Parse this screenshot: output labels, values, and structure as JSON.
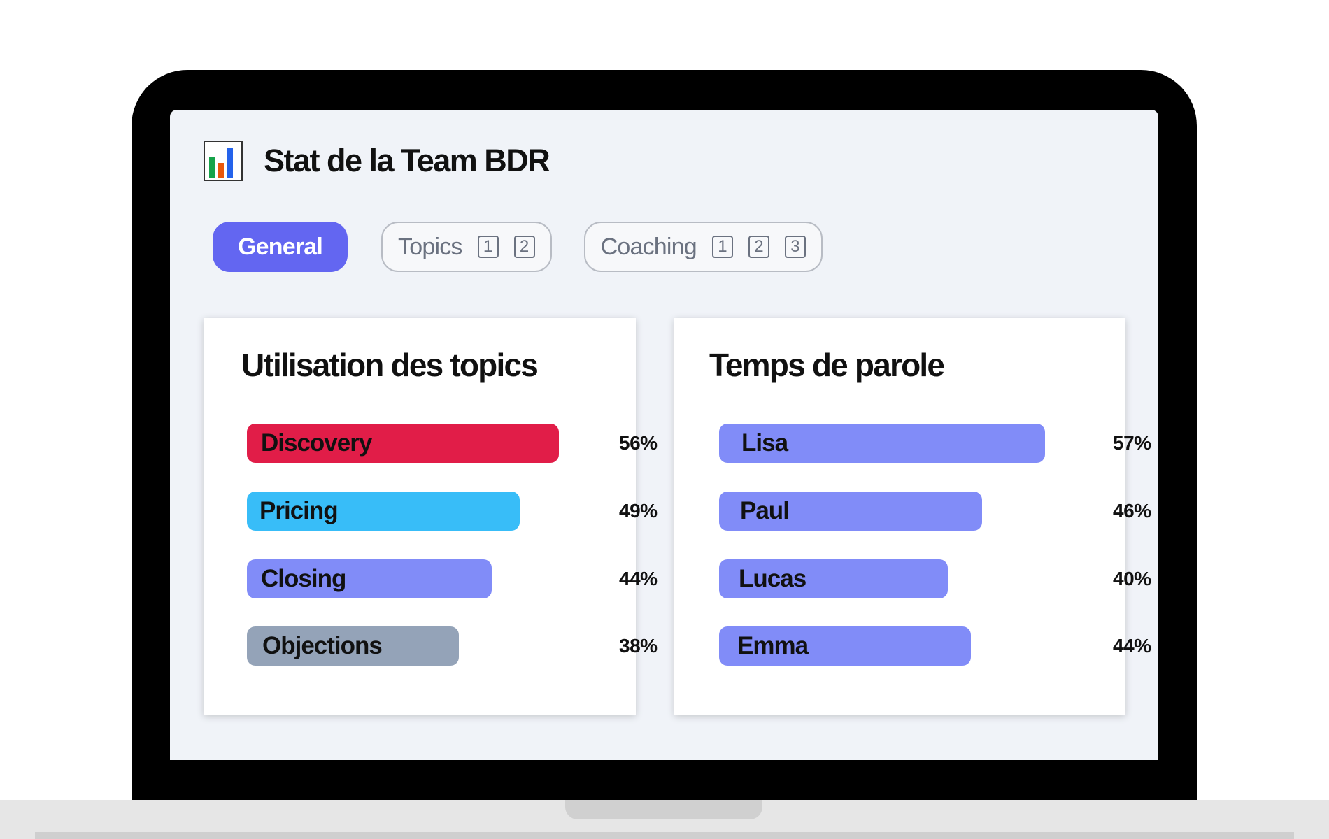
{
  "header": {
    "title": "Stat de la Team BDR",
    "icon": "bar-chart-icon"
  },
  "tabs": [
    {
      "label": "General",
      "active": true,
      "pages": []
    },
    {
      "label": "Topics",
      "active": false,
      "pages": [
        "1",
        "2"
      ]
    },
    {
      "label": "Coaching",
      "active": false,
      "pages": [
        "1",
        "2",
        "3"
      ]
    }
  ],
  "colors": {
    "accent": "#6366f1",
    "discovery": "#e11d48",
    "pricing": "#38bdf8",
    "closing": "#818cf8",
    "objections": "#94a3b8",
    "speaker": "#818cf8"
  },
  "chart_data": [
    {
      "type": "bar",
      "title": "Utilisation des topics",
      "categories": [
        "Discovery",
        "Pricing",
        "Closing",
        "Objections"
      ],
      "values": [
        56,
        49,
        44,
        38
      ],
      "labels": [
        "56%",
        "49%",
        "44%",
        "38%"
      ],
      "colors": [
        "#e11d48",
        "#38bdf8",
        "#818cf8",
        "#94a3b8"
      ],
      "xlim": [
        0,
        56
      ]
    },
    {
      "type": "bar",
      "title": "Temps de parole",
      "categories": [
        "Lisa",
        "Paul",
        "Lucas",
        "Emma"
      ],
      "values": [
        57,
        46,
        40,
        44
      ],
      "labels": [
        "57%",
        "46%",
        "40%",
        "44%"
      ],
      "colors": [
        "#818cf8",
        "#818cf8",
        "#818cf8",
        "#818cf8"
      ],
      "xlim": [
        0,
        57
      ]
    }
  ]
}
